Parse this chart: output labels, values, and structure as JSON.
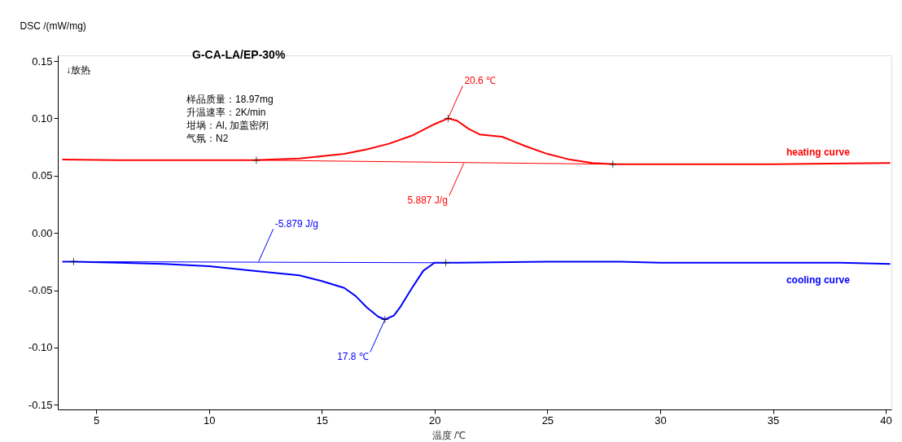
{
  "chart_data": {
    "type": "line",
    "title": "G-CA-LA/EP-30%",
    "xlabel": "温度 /℃",
    "ylabel": "DSC /(mW/mg)",
    "xlim": [
      3.3,
      40.25
    ],
    "ylim": [
      -0.154,
      0.155
    ],
    "xticks": [
      5,
      10,
      15,
      20,
      25,
      30,
      35,
      40
    ],
    "yticks": [
      {
        "value": -0.15,
        "label": "-0.15"
      },
      {
        "value": -0.1,
        "label": "-0.10"
      },
      {
        "value": -0.05,
        "label": "-0.05"
      },
      {
        "value": 0,
        "label": "0.00"
      },
      {
        "value": 0.05,
        "label": "0.05"
      },
      {
        "value": 0.1,
        "label": "0.10"
      },
      {
        "value": 0.15,
        "label": "0.15"
      }
    ],
    "grid": false,
    "series": [
      {
        "name": "heating curve",
        "color": "#ff0000",
        "x": [
          3.5,
          6,
          9,
          12,
          14,
          16,
          17,
          18,
          19,
          20,
          20.6,
          21,
          21.5,
          22,
          23,
          23.5,
          24,
          25,
          26,
          27,
          28,
          30,
          35,
          40.2
        ],
        "values": [
          0.064,
          0.0635,
          0.0635,
          0.0635,
          0.065,
          0.069,
          0.073,
          0.078,
          0.085,
          0.095,
          0.1,
          0.098,
          0.091,
          0.086,
          0.084,
          0.08,
          0.076,
          0.069,
          0.064,
          0.061,
          0.06,
          0.06,
          0.06,
          0.061
        ]
      },
      {
        "color": "#ff0000",
        "x": [
          12.1,
          27.9
        ],
        "values": [
          0.0635,
          0.06
        ]
      },
      {
        "name": "cooling curve",
        "color": "#0000ff",
        "x": [
          3.5,
          4,
          6,
          8,
          10,
          12,
          14,
          15,
          16,
          16.5,
          17,
          17.5,
          17.8,
          18.2,
          18.5,
          19,
          19.5,
          20,
          21,
          25,
          28,
          30,
          38,
          40.2
        ],
        "values": [
          -0.025,
          -0.025,
          -0.026,
          -0.027,
          -0.029,
          -0.033,
          -0.037,
          -0.042,
          -0.048,
          -0.055,
          -0.065,
          -0.073,
          -0.0755,
          -0.072,
          -0.064,
          -0.048,
          -0.033,
          -0.026,
          -0.026,
          -0.025,
          -0.025,
          -0.026,
          -0.026,
          -0.027
        ]
      },
      {
        "color": "#0000ff",
        "x": [
          4,
          20.5
        ],
        "values": [
          -0.025,
          -0.026
        ]
      },
      {
        "type": "scatter",
        "marker": "cross",
        "color": "#000000",
        "x": [
          12.1,
          20.6,
          27.9,
          4,
          17.8,
          20.5
        ],
        "values": [
          0.0635,
          0.1,
          0.06,
          -0.025,
          -0.0755,
          -0.026
        ]
      }
    ],
    "annotations": [
      "↓放热",
      "样品质量：18.97mg",
      "升温速率：2K/min",
      "坩埚：Al, 加盖密闭",
      "气氛：N2",
      {
        "text": "20.6 ℃",
        "x": 20.6,
        "y": 0.1
      },
      {
        "text": "5.887 J/g",
        "x": 21.3,
        "y": 0.061
      },
      {
        "text": "-5.879 J/g",
        "x": 12.2,
        "y": -0.025
      },
      {
        "text": "17.8 ℃",
        "x": 17.8,
        "y": -0.0755
      }
    ]
  }
}
